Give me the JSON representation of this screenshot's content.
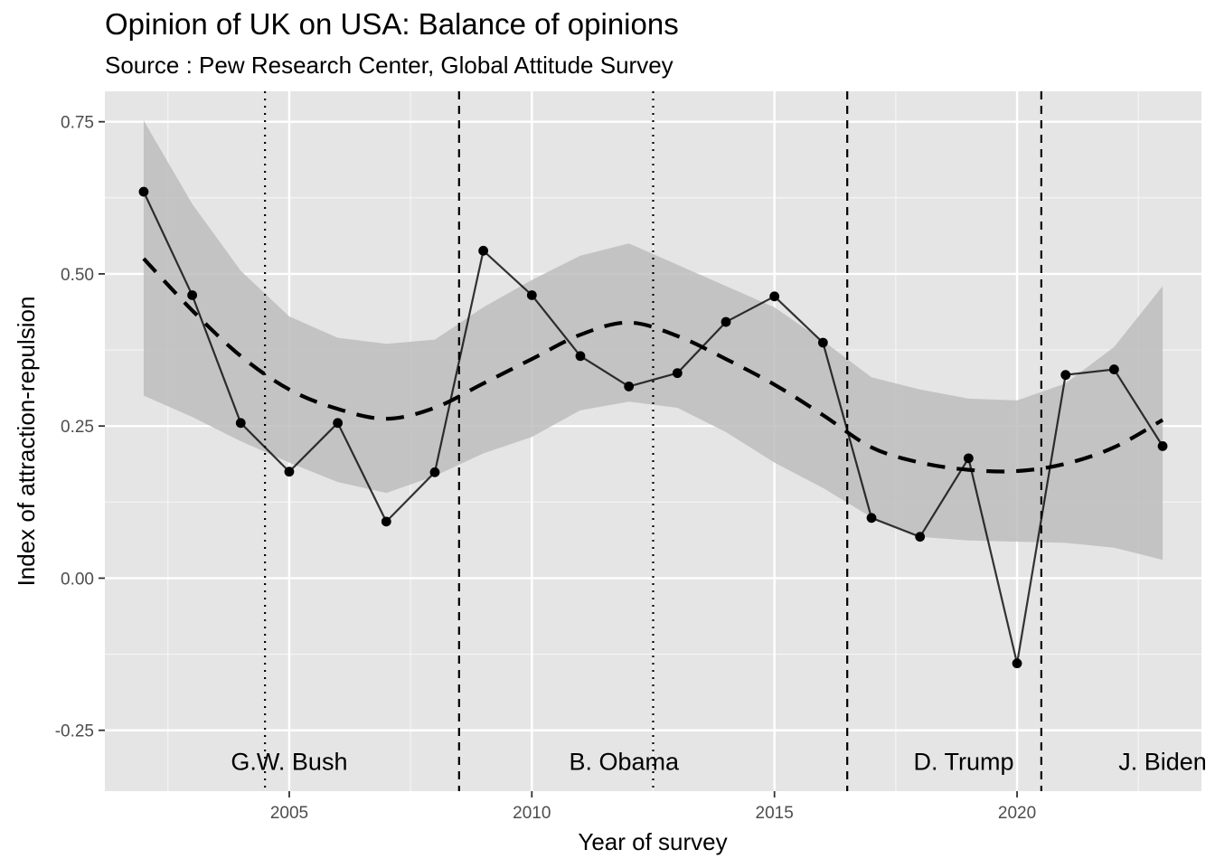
{
  "chart_data": {
    "type": "line",
    "title": "Opinion of UK on USA: Balance of opinions",
    "subtitle": "Source : Pew Research Center, Global Attitude Survey",
    "xlabel": "Year of survey",
    "ylabel": "Index of attraction-repulsion",
    "xlim": [
      2001.2,
      2023.8
    ],
    "ylim": [
      -0.35,
      0.8
    ],
    "x_ticks": [
      2005,
      2010,
      2015,
      2020
    ],
    "x_tick_labels": [
      "2005",
      "2010",
      "2015",
      "2020"
    ],
    "x_minor_ticks": [
      2002.5,
      2007.5,
      2012.5,
      2017.5,
      2022.5
    ],
    "y_ticks": [
      -0.25,
      0.0,
      0.25,
      0.5,
      0.75
    ],
    "y_tick_labels": [
      "-0.25",
      "0.00",
      "0.25",
      "0.50",
      "0.75"
    ],
    "y_minor_ticks": [
      -0.125,
      0.125,
      0.375,
      0.625
    ],
    "grid": true,
    "series": [
      {
        "style": "line+points",
        "x": [
          2002,
          2003,
          2004,
          2005,
          2006,
          2007,
          2008,
          2009,
          2010,
          2011,
          2012,
          2013,
          2014,
          2015,
          2016,
          2017,
          2018,
          2019,
          2020,
          2021,
          2022,
          2023
        ],
        "y": [
          0.635,
          0.465,
          0.255,
          0.175,
          0.255,
          0.093,
          0.174,
          0.538,
          0.465,
          0.365,
          0.315,
          0.337,
          0.421,
          0.463,
          0.387,
          0.099,
          0.068,
          0.197,
          -0.14,
          0.334,
          0.343,
          0.217
        ]
      },
      {
        "style": "smooth-dashed",
        "x": [
          2002,
          2003,
          2004,
          2005,
          2006,
          2007,
          2008,
          2009,
          2010,
          2011,
          2012,
          2013,
          2014,
          2015,
          2016,
          2017,
          2018,
          2019,
          2020,
          2021,
          2022,
          2023
        ],
        "y": [
          0.525,
          0.44,
          0.365,
          0.31,
          0.278,
          0.262,
          0.28,
          0.32,
          0.36,
          0.4,
          0.42,
          0.398,
          0.36,
          0.318,
          0.268,
          0.215,
          0.19,
          0.178,
          0.176,
          0.188,
          0.215,
          0.26
        ],
        "band_lower": [
          0.3,
          0.265,
          0.225,
          0.19,
          0.158,
          0.14,
          0.168,
          0.205,
          0.232,
          0.276,
          0.29,
          0.28,
          0.24,
          0.19,
          0.148,
          0.1,
          0.068,
          0.062,
          0.06,
          0.058,
          0.05,
          0.03
        ],
        "band_upper": [
          0.752,
          0.615,
          0.505,
          0.43,
          0.395,
          0.385,
          0.392,
          0.445,
          0.49,
          0.53,
          0.55,
          0.515,
          0.48,
          0.445,
          0.39,
          0.33,
          0.31,
          0.295,
          0.292,
          0.32,
          0.38,
          0.48
        ]
      }
    ],
    "vlines": [
      {
        "x": 2004.5,
        "style": "dotted"
      },
      {
        "x": 2008.5,
        "style": "dashed"
      },
      {
        "x": 2012.5,
        "style": "dotted"
      },
      {
        "x": 2016.5,
        "style": "dashed"
      },
      {
        "x": 2020.5,
        "style": "dashed"
      }
    ],
    "annotations": [
      {
        "text": "G.W. Bush",
        "x": 2005,
        "y": -0.3
      },
      {
        "text": "B. Obama",
        "x": 2011.9,
        "y": -0.3
      },
      {
        "text": "D. Trump",
        "x": 2018.9,
        "y": -0.3
      },
      {
        "text": "J. Biden",
        "x": 2023,
        "y": -0.3
      }
    ],
    "colors": {
      "panel": "#e5e5e5",
      "grid": "#ffffff",
      "band": "#bdbdbd",
      "line": "#333333",
      "points": "#000000"
    }
  }
}
